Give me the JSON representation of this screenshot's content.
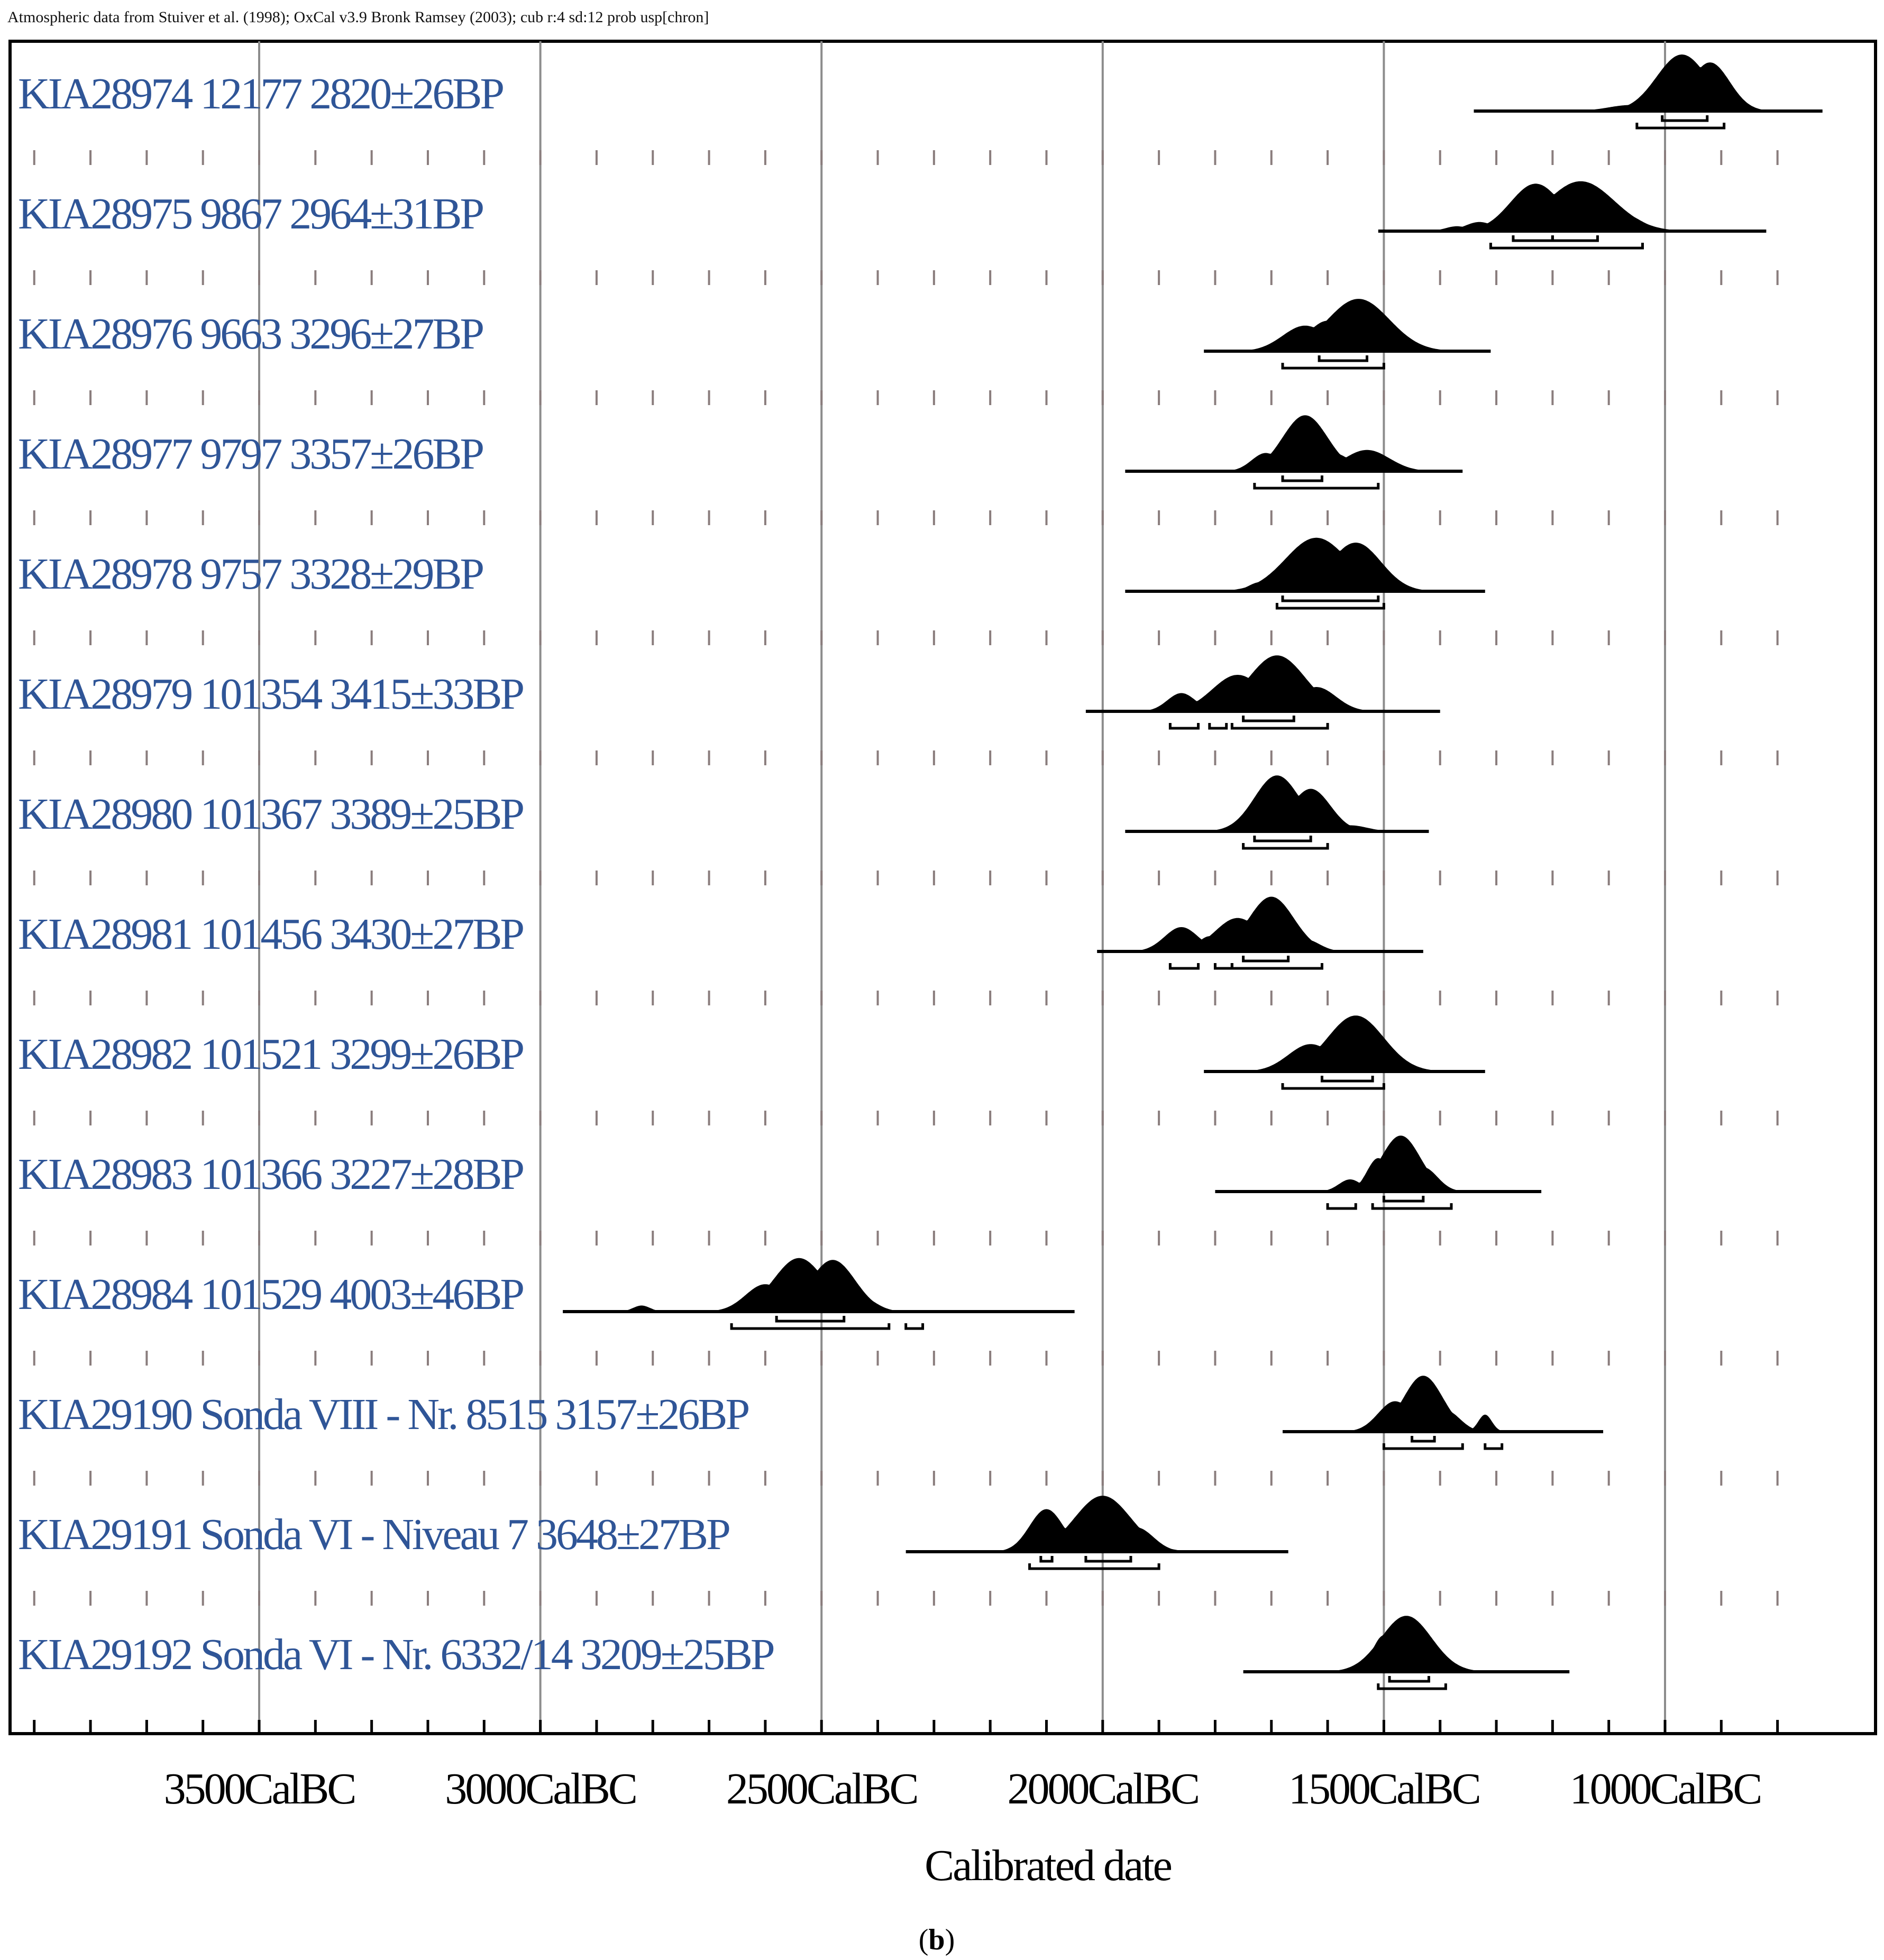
{
  "chart_data": {
    "type": "oxcal-multiplot",
    "header": "Atmospheric data from Stuiver et al. (1998); OxCal v3.9 Bronk Ramsey (2003); cub r:4 sd:12 prob usp[chron]",
    "xlabel": "Calibrated date",
    "caption": {
      "open": "(",
      "letter": "b",
      "close": ")"
    },
    "xlim": [
      3900,
      750
    ],
    "major_gridlines": [
      3500,
      3000,
      2500,
      2000,
      1500,
      1000
    ],
    "x_ticks": [
      {
        "value": 3500,
        "label": "3500CalBC"
      },
      {
        "value": 3000,
        "label": "3000CalBC"
      },
      {
        "value": 2500,
        "label": "2500CalBC"
      },
      {
        "value": 2000,
        "label": "2000CalBC"
      },
      {
        "value": 1500,
        "label": "1500CalBC"
      },
      {
        "value": 1000,
        "label": "1000CalBC"
      }
    ],
    "minor_tick_step": 100,
    "samples": [
      {
        "label": "KIA28974  12177  2820±26BP",
        "range": [
          1340,
          720
        ],
        "peaks": [
          [
            970,
            0.93,
            45
          ],
          [
            920,
            0.8,
            35
          ],
          [
            1060,
            0.1,
            40
          ]
        ],
        "ranges_95": [
          [
            1050,
            895
          ]
        ],
        "ranges_68": [
          [
            1005,
            925
          ]
        ]
      },
      {
        "label": "KIA28975  9867  2964±31BP",
        "range": [
          1510,
          820
        ],
        "peaks": [
          [
            1230,
            0.78,
            45
          ],
          [
            1150,
            0.82,
            60
          ],
          [
            1080,
            0.3,
            35
          ],
          [
            1330,
            0.15,
            25
          ],
          [
            1370,
            0.08,
            20
          ]
        ],
        "ranges_95": [
          [
            1310,
            1040
          ]
        ],
        "ranges_68": [
          [
            1270,
            1200
          ],
          [
            1200,
            1120
          ]
        ]
      },
      {
        "label": "KIA28976  9663  3296±27BP",
        "range": [
          1820,
          1310
        ],
        "peaks": [
          [
            1545,
            0.86,
            55
          ],
          [
            1640,
            0.42,
            40
          ],
          [
            1600,
            0.5,
            35
          ],
          [
            1460,
            0.08,
            20
          ]
        ],
        "ranges_95": [
          [
            1680,
            1500
          ]
        ],
        "ranges_68": [
          [
            1615,
            1530
          ]
        ]
      },
      {
        "label": "KIA28977  9797  3357±26BP",
        "range": [
          1960,
          1360
        ],
        "peaks": [
          [
            1640,
            0.92,
            40
          ],
          [
            1530,
            0.35,
            40
          ],
          [
            1710,
            0.3,
            25
          ],
          [
            1590,
            0.3,
            30
          ]
        ],
        "ranges_95": [
          [
            1730,
            1510
          ]
        ],
        "ranges_68": [
          [
            1680,
            1610
          ]
        ]
      },
      {
        "label": "KIA28978  9757  3328±29BP",
        "range": [
          1960,
          1320
        ],
        "peaks": [
          [
            1620,
            0.88,
            55
          ],
          [
            1550,
            0.8,
            45
          ],
          [
            1720,
            0.15,
            20
          ]
        ],
        "ranges_95": [
          [
            1690,
            1500
          ]
        ],
        "ranges_68": [
          [
            1680,
            1510
          ]
        ]
      },
      {
        "label": "KIA28979  101354  3415±33BP",
        "range": [
          2030,
          1400
        ],
        "peaks": [
          [
            1690,
            0.92,
            50
          ],
          [
            1760,
            0.6,
            45
          ],
          [
            1620,
            0.4,
            35
          ],
          [
            1860,
            0.3,
            25
          ],
          [
            1820,
            0.15,
            20
          ]
        ],
        "ranges_95": [
          [
            1880,
            1830
          ],
          [
            1810,
            1780
          ],
          [
            1770,
            1600
          ]
        ],
        "ranges_68": [
          [
            1750,
            1660
          ]
        ]
      },
      {
        "label": "KIA28980  101367  3389±25BP",
        "range": [
          1960,
          1420
        ],
        "peaks": [
          [
            1690,
            0.92,
            40
          ],
          [
            1630,
            0.7,
            35
          ],
          [
            1730,
            0.3,
            25
          ],
          [
            1560,
            0.1,
            30
          ]
        ],
        "ranges_95": [
          [
            1750,
            1600
          ]
        ],
        "ranges_68": [
          [
            1730,
            1630
          ]
        ]
      },
      {
        "label": "KIA28981  101456  3430±27BP",
        "range": [
          2010,
          1430
        ],
        "peaks": [
          [
            1700,
            0.9,
            40
          ],
          [
            1760,
            0.55,
            40
          ],
          [
            1860,
            0.4,
            30
          ],
          [
            1810,
            0.25,
            20
          ],
          [
            1640,
            0.2,
            25
          ]
        ],
        "ranges_95": [
          [
            1880,
            1830
          ],
          [
            1800,
            1770
          ],
          [
            1770,
            1610
          ]
        ],
        "ranges_68": [
          [
            1750,
            1670
          ]
        ]
      },
      {
        "label": "KIA28982  101521  3299±26BP",
        "range": [
          1820,
          1320
        ],
        "peaks": [
          [
            1550,
            0.92,
            50
          ],
          [
            1630,
            0.45,
            40
          ],
          [
            1470,
            0.1,
            25
          ]
        ],
        "ranges_95": [
          [
            1680,
            1500
          ]
        ],
        "ranges_68": [
          [
            1610,
            1520
          ]
        ]
      },
      {
        "label": "KIA28983  101366  3227±28BP",
        "range": [
          1800,
          1220
        ],
        "peaks": [
          [
            1470,
            0.92,
            35
          ],
          [
            1510,
            0.55,
            20
          ],
          [
            1430,
            0.4,
            25
          ],
          [
            1560,
            0.2,
            20
          ]
        ],
        "ranges_95": [
          [
            1600,
            1550
          ],
          [
            1520,
            1380
          ]
        ],
        "ranges_68": [
          [
            1500,
            1430
          ]
        ]
      },
      {
        "label": "KIA28984  101529  4003±46BP",
        "range": [
          2960,
          2050
        ],
        "peaks": [
          [
            2540,
            0.88,
            45
          ],
          [
            2480,
            0.85,
            40
          ],
          [
            2600,
            0.45,
            35
          ],
          [
            2440,
            0.3,
            30
          ],
          [
            2820,
            0.1,
            15
          ]
        ],
        "ranges_95": [
          [
            2660,
            2380
          ],
          [
            2350,
            2320
          ]
        ],
        "ranges_68": [
          [
            2580,
            2460
          ]
        ]
      },
      {
        "label": "KIA29190  Sonda VIII - Nr. 8515  3157±26BP",
        "range": [
          1680,
          1110
        ],
        "peaks": [
          [
            1430,
            0.92,
            35
          ],
          [
            1480,
            0.5,
            30
          ],
          [
            1320,
            0.28,
            12
          ],
          [
            1390,
            0.35,
            25
          ]
        ],
        "ranges_95": [
          [
            1500,
            1360
          ],
          [
            1320,
            1290
          ]
        ],
        "ranges_68": [
          [
            1450,
            1410
          ]
        ]
      },
      {
        "label": "KIA29191  Sonda VI - Niveau 7  3648±27BP",
        "range": [
          2350,
          1670
        ],
        "peaks": [
          [
            2000,
            0.92,
            50
          ],
          [
            2100,
            0.7,
            30
          ],
          [
            1940,
            0.4,
            30
          ],
          [
            2050,
            0.45,
            25
          ]
        ],
        "ranges_95": [
          [
            2130,
            1900
          ]
        ],
        "ranges_68": [
          [
            2110,
            2090
          ],
          [
            2030,
            1950
          ]
        ]
      },
      {
        "label": "KIA29192  Sonda VI - Nr. 6332/14  3209±25BP",
        "range": [
          1750,
          1170
        ],
        "peaks": [
          [
            1460,
            0.92,
            45
          ],
          [
            1500,
            0.6,
            20
          ],
          [
            1410,
            0.3,
            25
          ]
        ],
        "ranges_95": [
          [
            1510,
            1390
          ]
        ],
        "ranges_68": [
          [
            1490,
            1420
          ]
        ]
      }
    ]
  }
}
